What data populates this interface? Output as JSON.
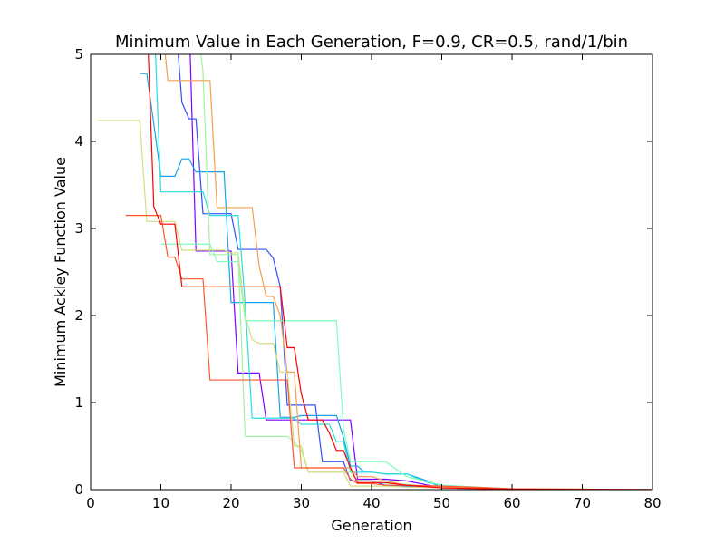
{
  "chart_data": {
    "type": "line",
    "title": "Minimum Value in Each Generation, F=0.9, CR=0.5, rand/1/bin",
    "xlabel": "Generation",
    "ylabel": "Minimum Ackley Function Value",
    "xlim": [
      0,
      80
    ],
    "ylim": [
      0,
      5
    ],
    "xticks": [
      0,
      10,
      20,
      30,
      40,
      50,
      60,
      70,
      80
    ],
    "yticks": [
      0,
      1,
      2,
      3,
      4,
      5
    ],
    "grid": false,
    "legend": "none",
    "series": [
      {
        "color": "#8000ff",
        "x": [
          14,
          15,
          16,
          17,
          18,
          19,
          20,
          21,
          22,
          23,
          24,
          25,
          26,
          27,
          28,
          29,
          30,
          31,
          32,
          33,
          34,
          35,
          36,
          37,
          38,
          39,
          40,
          42,
          45,
          50,
          60,
          80
        ],
        "y": [
          5.5,
          2.74,
          2.74,
          2.74,
          2.74,
          2.74,
          2.74,
          1.34,
          1.34,
          1.34,
          1.34,
          0.8,
          0.8,
          0.8,
          0.8,
          0.8,
          0.8,
          0.8,
          0.8,
          0.8,
          0.8,
          0.8,
          0.8,
          0.8,
          0.12,
          0.12,
          0.12,
          0.12,
          0.1,
          0.02,
          0.005,
          0.0
        ]
      },
      {
        "color": "#3050f8",
        "x": [
          12,
          13,
          14,
          15,
          16,
          17,
          18,
          19,
          20,
          21,
          22,
          23,
          24,
          25,
          26,
          27,
          28,
          29,
          30,
          31,
          32,
          33,
          34,
          35,
          36,
          37,
          38,
          39,
          40,
          42,
          45,
          50,
          60,
          80
        ],
        "y": [
          5.5,
          4.45,
          4.26,
          4.26,
          3.17,
          3.17,
          3.17,
          3.17,
          3.17,
          2.76,
          2.76,
          2.76,
          2.76,
          2.76,
          2.66,
          2.33,
          0.97,
          0.97,
          0.97,
          0.97,
          0.97,
          0.32,
          0.32,
          0.32,
          0.32,
          0.1,
          0.1,
          0.1,
          0.1,
          0.05,
          0.04,
          0.02,
          0.005,
          0.0
        ]
      },
      {
        "color": "#15a5e8",
        "x": [
          7,
          8,
          9,
          10,
          11,
          12,
          13,
          14,
          15,
          16,
          17,
          18,
          19,
          20,
          21,
          22,
          23,
          24,
          25,
          26,
          27,
          28,
          29,
          30,
          31,
          32,
          33,
          34,
          35,
          36,
          37,
          38,
          39,
          40,
          42,
          45,
          48,
          50,
          60,
          80
        ],
        "y": [
          4.78,
          4.78,
          4.2,
          3.6,
          3.6,
          3.6,
          3.8,
          3.8,
          3.65,
          3.65,
          3.65,
          3.65,
          3.65,
          2.15,
          2.15,
          2.15,
          2.15,
          2.15,
          2.15,
          2.15,
          0.83,
          0.83,
          0.83,
          0.85,
          0.85,
          0.85,
          0.85,
          0.85,
          0.85,
          0.6,
          0.27,
          0.27,
          0.2,
          0.2,
          0.18,
          0.18,
          0.1,
          0.02,
          0.005,
          0.0
        ]
      },
      {
        "color": "#2adddd",
        "x": [
          9,
          10,
          11,
          12,
          13,
          14,
          15,
          16,
          17,
          18,
          19,
          20,
          21,
          22,
          23,
          24,
          25,
          26,
          27,
          28,
          29,
          30,
          31,
          32,
          33,
          34,
          35,
          36,
          37,
          38,
          39,
          40,
          42,
          45,
          48,
          50,
          60,
          80
        ],
        "y": [
          5.5,
          3.42,
          3.42,
          3.42,
          3.42,
          3.42,
          3.42,
          3.42,
          3.15,
          3.15,
          3.15,
          3.15,
          3.15,
          2.15,
          0.82,
          0.82,
          0.82,
          0.82,
          0.82,
          0.82,
          0.82,
          0.75,
          0.75,
          0.75,
          0.75,
          0.75,
          0.55,
          0.55,
          0.2,
          0.2,
          0.2,
          0.2,
          0.18,
          0.18,
          0.08,
          0.05,
          0.005,
          0.0
        ]
      },
      {
        "color": "#7ffcbd",
        "x": [
          10,
          11,
          12,
          13,
          14,
          15,
          16,
          17,
          18,
          19,
          20,
          21,
          22,
          23,
          24,
          25,
          26,
          27,
          28,
          29,
          30,
          31,
          32,
          33,
          34,
          35,
          36,
          37,
          38,
          39,
          40,
          42,
          45,
          50,
          60,
          80
        ],
        "y": [
          2.82,
          2.82,
          2.82,
          2.82,
          2.82,
          2.82,
          2.82,
          2.82,
          2.62,
          2.62,
          2.62,
          2.62,
          1.94,
          1.94,
          1.94,
          1.94,
          1.94,
          1.94,
          1.94,
          1.94,
          1.94,
          1.94,
          1.94,
          1.94,
          1.94,
          1.94,
          0.7,
          0.32,
          0.32,
          0.32,
          0.32,
          0.32,
          0.15,
          0.05,
          0.01,
          0.0
        ]
      },
      {
        "color": "#a0f3a0",
        "x": [
          8,
          9,
          10,
          11,
          12,
          13,
          14,
          15,
          16,
          17,
          18,
          19,
          20,
          21,
          22,
          23,
          24,
          25,
          26,
          27,
          28,
          29,
          30,
          31,
          32,
          33,
          34,
          35,
          36,
          37,
          38,
          40,
          42,
          45,
          50,
          60,
          80
        ],
        "y": [
          5.5,
          5.5,
          5.5,
          5.5,
          5.5,
          5.5,
          5.5,
          5.5,
          4.8,
          2.7,
          2.7,
          2.7,
          2.7,
          2.7,
          0.61,
          0.61,
          0.61,
          0.61,
          0.61,
          0.61,
          0.61,
          0.55,
          0.45,
          0.2,
          0.2,
          0.2,
          0.2,
          0.2,
          0.2,
          0.2,
          0.1,
          0.1,
          0.07,
          0.06,
          0.02,
          0.005,
          0.0
        ]
      },
      {
        "color": "#d4dd80",
        "x": [
          1,
          2,
          3,
          4,
          5,
          6,
          7,
          8,
          9,
          10,
          11,
          12,
          13,
          14,
          15,
          16,
          17,
          18,
          19,
          20,
          21,
          22,
          23,
          24,
          25,
          26,
          27,
          28,
          29,
          30,
          31,
          32,
          33,
          34,
          35,
          36,
          37,
          38,
          40,
          42,
          45,
          50,
          60,
          80
        ],
        "y": [
          4.24,
          4.24,
          4.24,
          4.24,
          4.24,
          4.24,
          4.24,
          3.08,
          3.08,
          3.08,
          3.08,
          3.08,
          2.75,
          2.75,
          2.75,
          2.75,
          2.75,
          2.75,
          2.75,
          2.72,
          2.72,
          2.0,
          1.72,
          1.68,
          1.68,
          1.68,
          1.35,
          1.35,
          0.5,
          0.5,
          0.2,
          0.2,
          0.2,
          0.2,
          0.2,
          0.2,
          0.04,
          0.04,
          0.04,
          0.04,
          0.03,
          0.02,
          0.005,
          0.0
        ]
      },
      {
        "color": "#f0a050",
        "x": [
          10,
          11,
          12,
          13,
          14,
          15,
          16,
          17,
          18,
          19,
          20,
          21,
          22,
          23,
          24,
          25,
          26,
          27,
          28,
          29,
          30,
          31,
          32,
          33,
          34,
          35,
          36,
          37,
          38,
          39,
          40,
          42,
          45,
          50,
          60,
          80
        ],
        "y": [
          5.5,
          4.7,
          4.7,
          4.7,
          4.7,
          4.7,
          4.7,
          4.7,
          3.24,
          3.24,
          3.24,
          3.24,
          3.24,
          3.24,
          2.57,
          2.22,
          2.22,
          2.0,
          1.35,
          1.35,
          0.25,
          0.25,
          0.25,
          0.25,
          0.25,
          0.25,
          0.25,
          0.25,
          0.15,
          0.15,
          0.15,
          0.1,
          0.05,
          0.03,
          0.01,
          0.0
        ]
      },
      {
        "color": "#ff5530",
        "x": [
          5,
          6,
          7,
          8,
          9,
          10,
          11,
          12,
          13,
          14,
          15,
          16,
          17,
          18,
          19,
          20,
          21,
          22,
          23,
          24,
          25,
          26,
          27,
          28,
          29,
          30,
          31,
          32,
          33,
          34,
          35,
          36,
          37,
          38,
          40,
          42,
          45,
          50,
          54,
          60,
          80
        ],
        "y": [
          3.15,
          3.15,
          3.15,
          3.15,
          3.15,
          3.15,
          2.67,
          2.67,
          2.42,
          2.42,
          2.42,
          2.42,
          1.26,
          1.26,
          1.26,
          1.26,
          1.26,
          1.26,
          1.26,
          1.26,
          1.26,
          1.26,
          1.26,
          1.26,
          0.25,
          0.25,
          0.25,
          0.25,
          0.25,
          0.25,
          0.25,
          0.25,
          0.12,
          0.07,
          0.07,
          0.05,
          0.05,
          0.04,
          0.03,
          0.01,
          0.0
        ]
      },
      {
        "color": "#ff0000",
        "x": [
          8,
          9,
          10,
          11,
          12,
          13,
          14,
          15,
          16,
          17,
          18,
          19,
          20,
          21,
          22,
          23,
          24,
          25,
          26,
          27,
          28,
          29,
          30,
          31,
          32,
          33,
          34,
          35,
          36,
          37,
          38,
          40,
          42,
          45,
          50,
          60,
          80
        ],
        "y": [
          5.5,
          3.25,
          3.05,
          3.05,
          3.05,
          2.33,
          2.33,
          2.33,
          2.33,
          2.33,
          2.33,
          2.33,
          2.33,
          2.33,
          2.33,
          2.33,
          2.33,
          2.33,
          2.33,
          2.33,
          1.63,
          1.63,
          1.1,
          0.8,
          0.8,
          0.8,
          0.65,
          0.45,
          0.45,
          0.25,
          0.08,
          0.08,
          0.08,
          0.05,
          0.02,
          0.005,
          0.0
        ]
      }
    ]
  }
}
